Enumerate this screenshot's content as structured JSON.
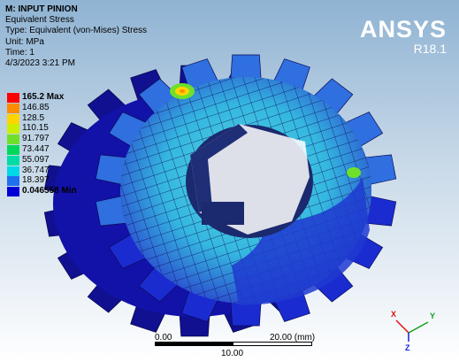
{
  "info": {
    "title": "M: INPUT PINION",
    "result": "Equivalent Stress",
    "type": "Type: Equivalent (von-Mises) Stress",
    "unit": "Unit: MPa",
    "time": "Time: 1",
    "date": "4/3/2023 3:21 PM"
  },
  "brand": {
    "logo": "ANSYS",
    "version": "R18.1"
  },
  "legend": [
    {
      "label": "165.2 Max",
      "color": "#ff0000",
      "bold": true
    },
    {
      "label": "146.85",
      "color": "#ff8c00"
    },
    {
      "label": "128.5",
      "color": "#ffd400"
    },
    {
      "label": "110.15",
      "color": "#ccee00"
    },
    {
      "label": "91.797",
      "color": "#6fe02a"
    },
    {
      "label": "73.447",
      "color": "#00d85a"
    },
    {
      "label": "55.097",
      "color": "#00dca6"
    },
    {
      "label": "36.747",
      "color": "#00d8e8"
    },
    {
      "label": "18.397",
      "color": "#1f6ff0"
    },
    {
      "label": "0.046558 Min",
      "color": "#0000d6",
      "bold": true
    }
  ],
  "scale": {
    "start": "0.00",
    "end": "20.00 (mm)",
    "mid": "10.00"
  },
  "triad": {
    "x": "X",
    "y": "Y",
    "z": "Z"
  },
  "colors": {
    "base": "#1212b8",
    "face": "#2a3ccc",
    "mesh": "#0a0a55",
    "bore_dark": "#1b2a6e",
    "stress_mid": "#34c9d8",
    "hot": "#ffd400"
  }
}
